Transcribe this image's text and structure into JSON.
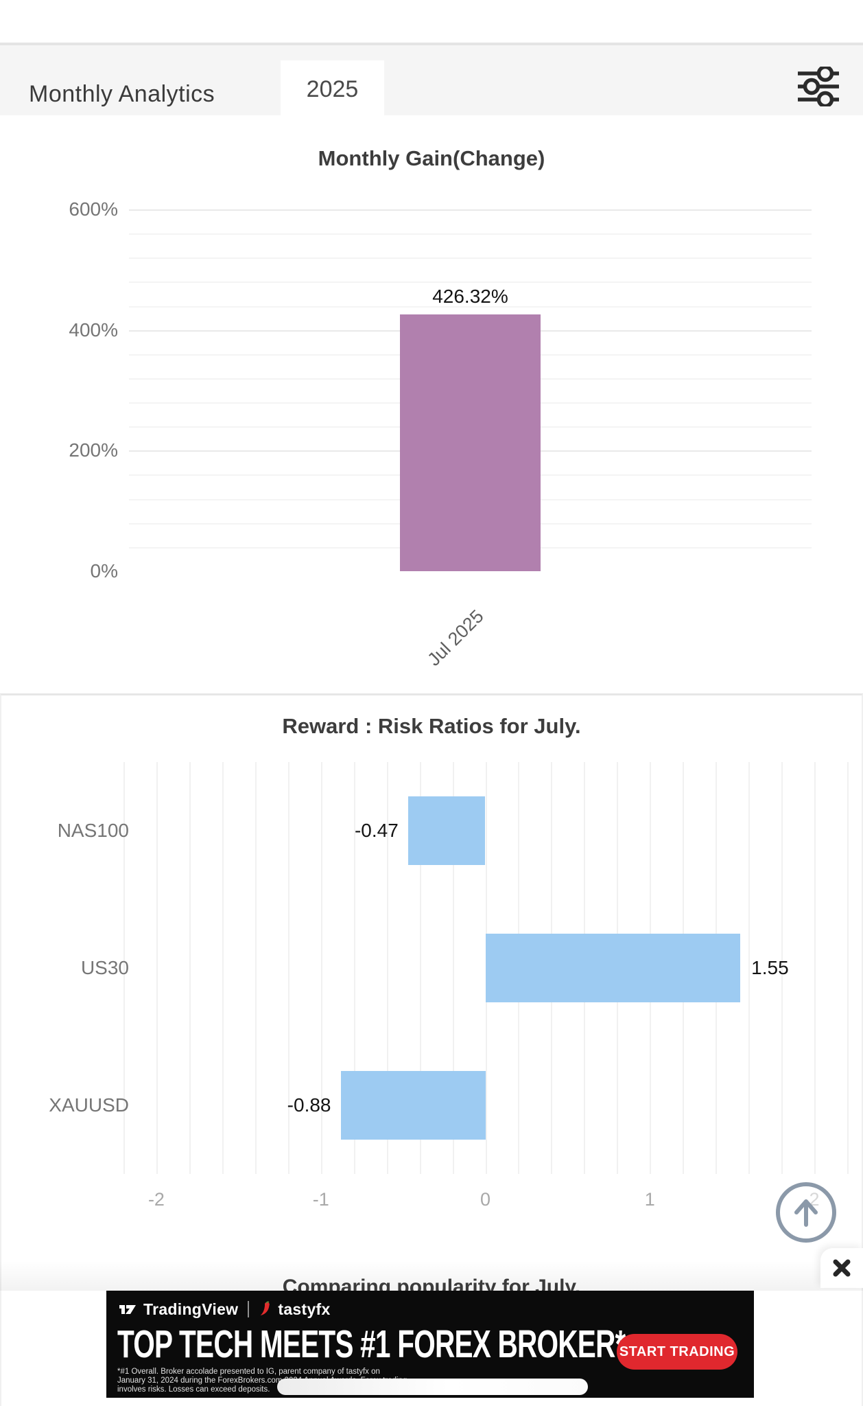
{
  "header": {
    "title": "Monthly Analytics",
    "year_tab": "2025",
    "filter_icon": "sliders-icon"
  },
  "chart_data": [
    {
      "type": "bar",
      "title": "Monthly Gain(Change)",
      "categories": [
        "Jul 2025"
      ],
      "values": [
        426.32
      ],
      "value_labels": [
        "426.32%"
      ],
      "xlabel": "",
      "ylabel": "",
      "ylim": [
        0,
        600
      ],
      "yticks": [
        600,
        400,
        200,
        0
      ],
      "ytick_labels": [
        "600%",
        "400%",
        "200%",
        "0%"
      ],
      "minor_grid_step": 40,
      "grid": true,
      "legend": "none",
      "bar_color": "#b180ae"
    },
    {
      "type": "horizontal-bar",
      "title": "Reward : Risk Ratios for July.",
      "categories": [
        "NAS100",
        "US30",
        "XAUUSD"
      ],
      "values": [
        -0.47,
        1.55,
        -0.88
      ],
      "value_labels": [
        "-0.47",
        "1.55",
        "-0.88"
      ],
      "xlabel": "",
      "ylabel": "",
      "xlim": [
        -2.2,
        2.2
      ],
      "xticks": [
        -2,
        -1,
        0,
        1,
        2
      ],
      "xtick_labels": [
        "-2",
        "-1",
        "0",
        "1",
        "2"
      ],
      "minor_grid_step": 0.2,
      "grid": true,
      "legend": "none",
      "bar_color": "#9dcbf2"
    }
  ],
  "section_heading_clipped": "Comparing popularity for July.",
  "scroll_top_button": {
    "icon": "arrow-up-icon"
  },
  "ad": {
    "close_icon": "x-icon",
    "brand_1": "TradingView",
    "brand_2": "tastyfx",
    "headline": "TOP TECH MEETS #1 FOREX BROKER*",
    "cta": "START TRADING",
    "cta_bg": "#e0282e",
    "disclaimer_lines": [
      "*#1 Overall. Broker accolade presented to IG, parent company of tastyfx on",
      "January 31, 2024 during the ForexBrokers.com 2024 Annual Awards. Forex trading",
      "involves risks. Losses can exceed deposits."
    ]
  }
}
